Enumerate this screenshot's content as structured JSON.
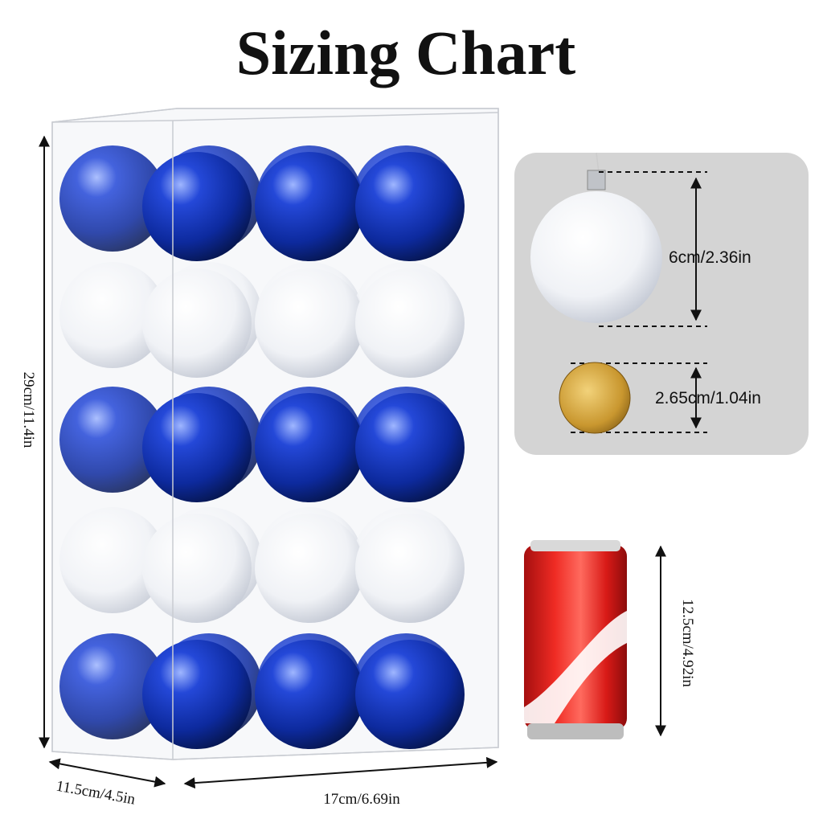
{
  "title": "Sizing Chart",
  "dimensions": {
    "height": "29cm/11.4in",
    "depth": "11.5cm/4.5in",
    "width": "17cm/6.69in",
    "ornament": "6cm/2.36in",
    "coin": "2.65cm/1.04in",
    "can": "12.5cm/4.92in"
  }
}
